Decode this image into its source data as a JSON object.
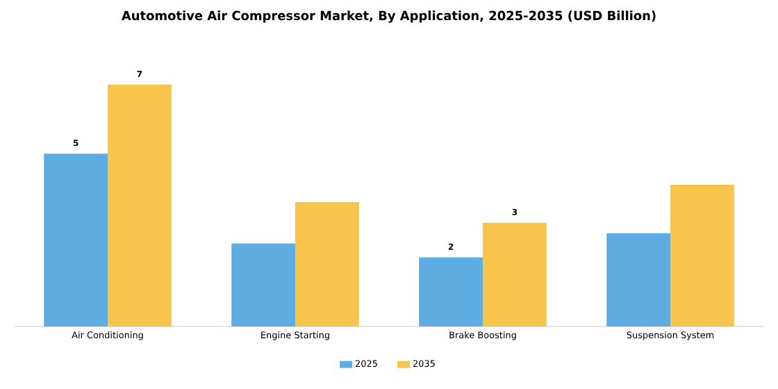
{
  "chart_data": {
    "type": "bar",
    "title": "Automotive Air Compressor Market, By Application, 2025-2035 (USD Billion)",
    "categories": [
      "Air Conditioning",
      "Engine Starting",
      "Brake Boosting",
      "Suspension System"
    ],
    "series": [
      {
        "name": "2025",
        "color": "#5dade2",
        "values": [
          5,
          2.4,
          2,
          2.7
        ],
        "value_labels": [
          "5",
          null,
          "2",
          null
        ]
      },
      {
        "name": "2035",
        "color": "#f7c44c",
        "values": [
          7,
          3.6,
          3,
          4.1
        ],
        "value_labels": [
          "7",
          null,
          "3",
          null
        ]
      }
    ],
    "legend": "bottom"
  }
}
